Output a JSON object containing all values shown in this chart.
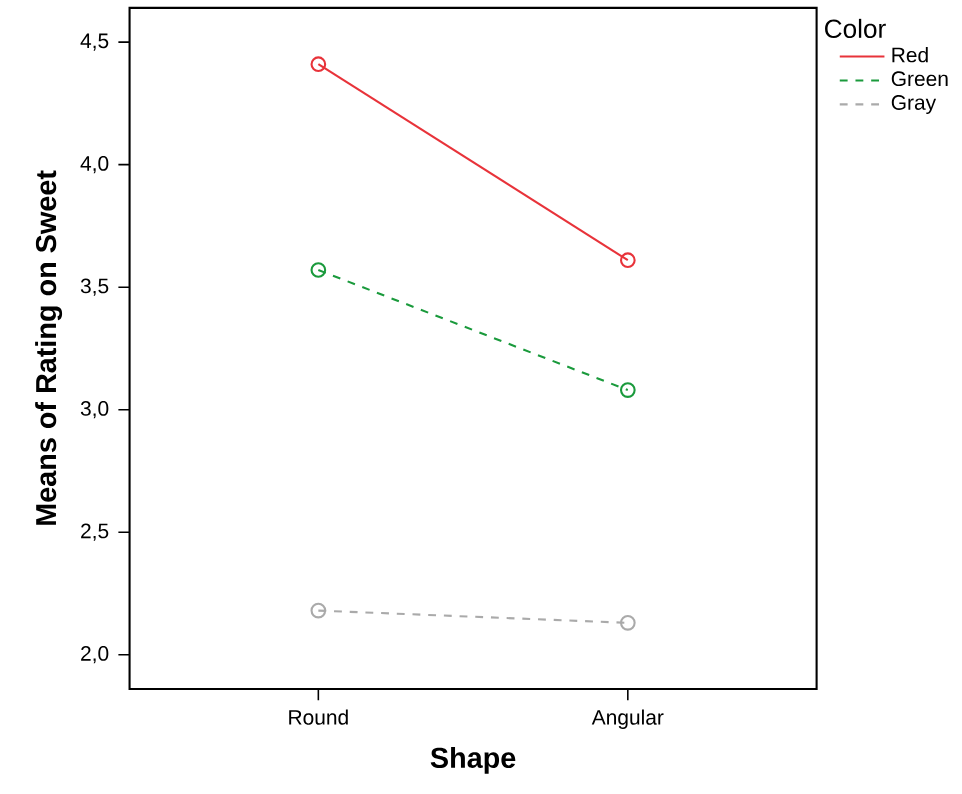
{
  "chart_data": {
    "type": "line",
    "xlabel": "Shape",
    "ylabel": "Means of Rating on Sweet",
    "legend_title": "Color",
    "legend": "top right",
    "marker": "circle",
    "categories": [
      "Round",
      "Angular"
    ],
    "ylim": [
      1.86,
      4.64
    ],
    "yticks": [
      {
        "value": 2.0,
        "label": "2,0"
      },
      {
        "value": 2.5,
        "label": "2,5"
      },
      {
        "value": 3.0,
        "label": "3,0"
      },
      {
        "value": 3.5,
        "label": "3,5"
      },
      {
        "value": 4.0,
        "label": "4,0"
      },
      {
        "value": 4.5,
        "label": "4,5"
      }
    ],
    "series": [
      {
        "name": "Red",
        "color": "#e8333a",
        "line_style": "solid",
        "values": [
          4.41,
          3.61
        ]
      },
      {
        "name": "Green",
        "color": "#1a9a3c",
        "line_style": "dashed",
        "values": [
          3.57,
          3.08
        ]
      },
      {
        "name": "Gray",
        "color": "#aaaaaa",
        "line_style": "dashed",
        "values": [
          2.18,
          2.13
        ]
      }
    ]
  }
}
